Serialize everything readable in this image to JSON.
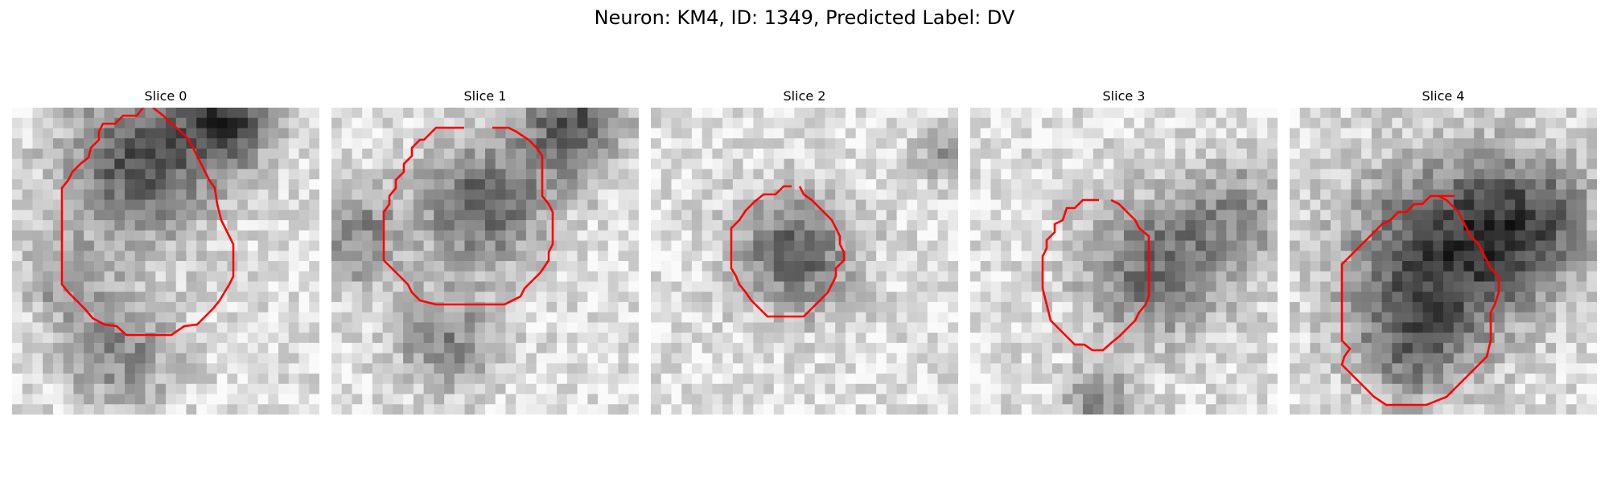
{
  "figure": {
    "title": "Neuron: KM4, ID: 1349, Predicted Label: DV"
  },
  "colors": {
    "contour": "#ff0000",
    "background": "#ffffff"
  },
  "panels": [
    {
      "title": "Slice 0",
      "image": "grayscale-microscopy-crop",
      "contour_color": "red"
    },
    {
      "title": "Slice 1",
      "image": "grayscale-microscopy-crop",
      "contour_color": "red"
    },
    {
      "title": "Slice 2",
      "image": "grayscale-microscopy-crop",
      "contour_color": "red"
    },
    {
      "title": "Slice 3",
      "image": "grayscale-microscopy-crop",
      "contour_color": "red"
    },
    {
      "title": "Slice 4",
      "image": "grayscale-microscopy-crop",
      "contour_color": "red"
    }
  ]
}
